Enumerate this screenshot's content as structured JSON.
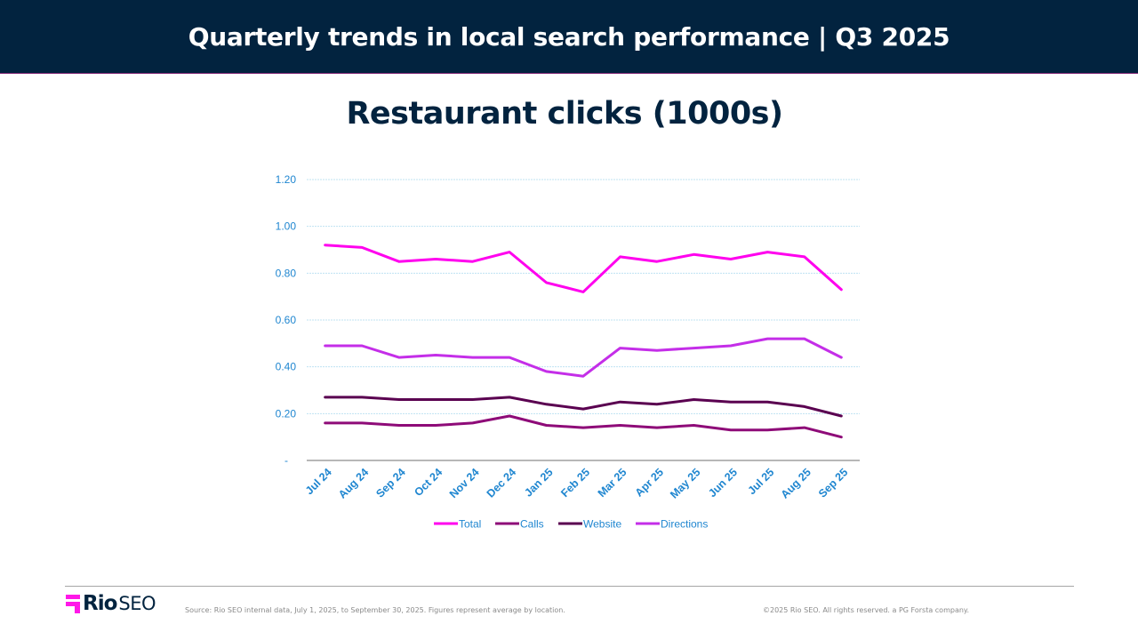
{
  "header": {
    "title": "Quarterly trends in local search performance | Q3 2025"
  },
  "chart_title": "Restaurant clicks (1000s)",
  "footer": {
    "logo_rio": "Rio",
    "logo_seo": "SEO",
    "source": "Source: Rio SEO internal data, July 1, 2025, to September 30, 2025. Figures represent average by location.",
    "copyright": "©2025 Rio SEO. All rights reserved. a PG Forsta company."
  },
  "colors": {
    "header_bg": "#02233f",
    "title_text": "#02233f",
    "axis_text": "#1f86d0",
    "gridline": "#bfe3f2",
    "brand_pink": "#ff18e8"
  },
  "chart_data": {
    "type": "line",
    "title": "Restaurant clicks (1000s)",
    "xlabel": "",
    "ylabel": "",
    "ylim": [
      0,
      1.2
    ],
    "yticks": [
      "-",
      "0.20",
      "0.40",
      "0.60",
      "0.80",
      "1.00",
      "1.20"
    ],
    "grid": true,
    "legend_position": "bottom",
    "categories": [
      "Jul 24",
      "Aug 24",
      "Sep 24",
      "Oct 24",
      "Nov 24",
      "Dec 24",
      "Jan 25",
      "Feb 25",
      "Mar 25",
      "Apr 25",
      "May 25",
      "Jun 25",
      "Jul 25",
      "Aug 25",
      "Sep 25"
    ],
    "series": [
      {
        "name": "Total",
        "color": "#ff00ee",
        "values": [
          0.92,
          0.91,
          0.85,
          0.86,
          0.85,
          0.89,
          0.76,
          0.72,
          0.87,
          0.85,
          0.88,
          0.86,
          0.89,
          0.87,
          0.73
        ]
      },
      {
        "name": "Calls",
        "color": "#8e0b78",
        "values": [
          0.16,
          0.16,
          0.15,
          0.15,
          0.16,
          0.19,
          0.15,
          0.14,
          0.15,
          0.14,
          0.15,
          0.13,
          0.13,
          0.14,
          0.1
        ]
      },
      {
        "name": "Website",
        "color": "#5a0050",
        "values": [
          0.27,
          0.27,
          0.26,
          0.26,
          0.26,
          0.27,
          0.24,
          0.22,
          0.25,
          0.24,
          0.26,
          0.25,
          0.25,
          0.23,
          0.19
        ]
      },
      {
        "name": "Directions",
        "color": "#c42ee8",
        "values": [
          0.49,
          0.49,
          0.44,
          0.45,
          0.44,
          0.44,
          0.38,
          0.36,
          0.48,
          0.47,
          0.48,
          0.49,
          0.52,
          0.52,
          0.44
        ]
      }
    ]
  }
}
